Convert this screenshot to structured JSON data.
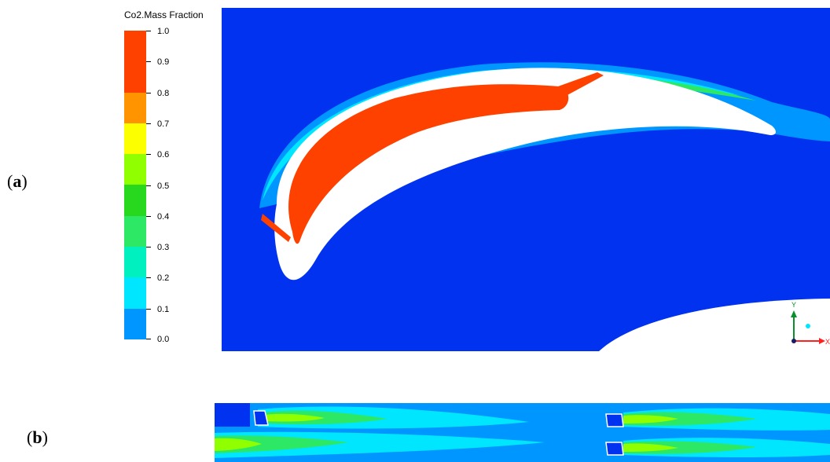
{
  "panels": {
    "a_label": "a",
    "b_label": "b"
  },
  "legend": {
    "title": "Co2.Mass Fraction",
    "ticks": [
      "1.0",
      "0.9",
      "0.8",
      "0.7",
      "0.6",
      "0.5",
      "0.4",
      "0.3",
      "0.2",
      "0.1",
      "0.0"
    ],
    "colors": [
      "#ff4100",
      "#ff9400",
      "#f0e000",
      "#fbff00",
      "#90ff00",
      "#27d81e",
      "#2de864",
      "#00f0c0",
      "#00e6ff",
      "#0096ff",
      "#0032f0"
    ]
  },
  "triad": {
    "y_label": "Y",
    "x_label": "X"
  },
  "field_colors": {
    "background": "#0032f0",
    "core": "#ff4100",
    "solid": "#ffffff",
    "band_b": "#0096ff"
  }
}
